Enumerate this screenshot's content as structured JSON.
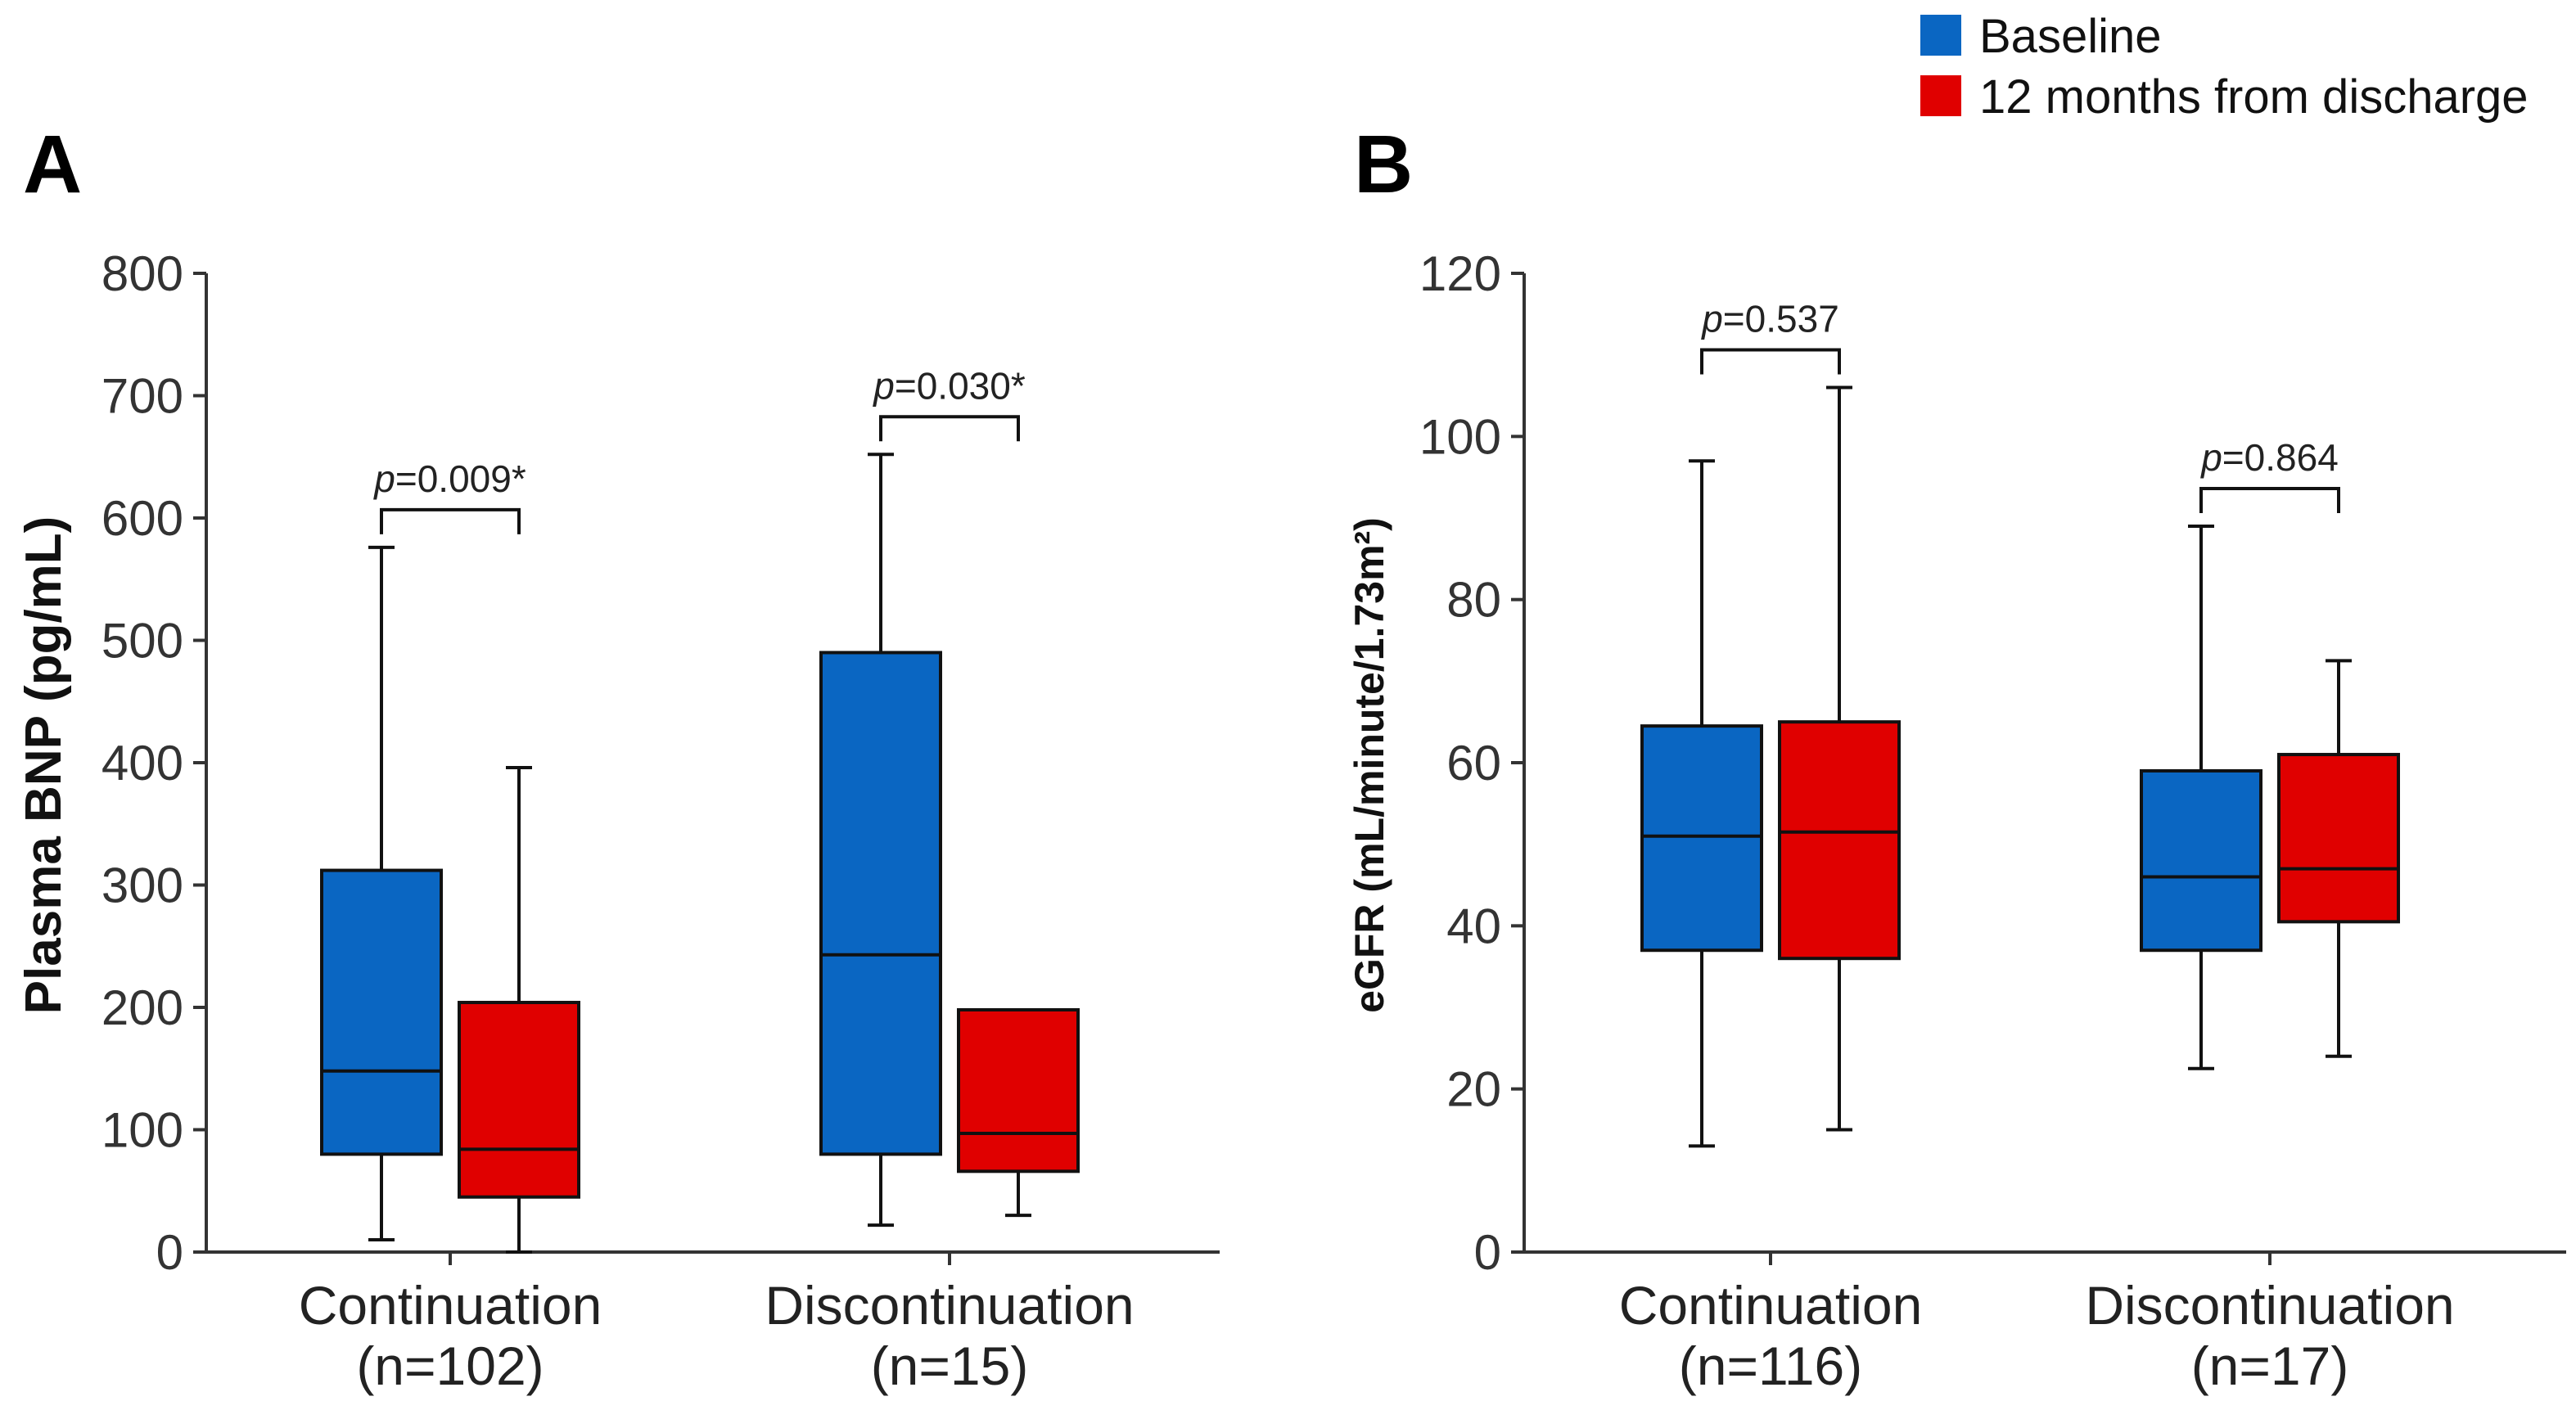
{
  "legend": [
    {
      "label": "Baseline",
      "color": "#0a66c2"
    },
    {
      "label": "12 months from discharge",
      "color": "#e00000"
    }
  ],
  "chart_data": [
    {
      "panel": "A",
      "type": "box",
      "ylabel": "Plasma BNP (pg/mL)",
      "ylim": [
        0,
        800
      ],
      "yticks": [
        0,
        100,
        200,
        300,
        400,
        500,
        600,
        700,
        800
      ],
      "groups": [
        {
          "name": "Continuation",
          "n": "(n=102)",
          "p": "=0.009*",
          "boxes": [
            {
              "series": "Baseline",
              "min": 10,
              "q1": 80,
              "median": 148,
              "q3": 312,
              "max": 576
            },
            {
              "series": "12 months from discharge",
              "min": 0,
              "q1": 45,
              "median": 84,
              "q3": 204,
              "max": 396
            }
          ]
        },
        {
          "name": "Discontinuation",
          "n": "(n=15)",
          "p": "=0.030*",
          "boxes": [
            {
              "series": "Baseline",
              "min": 22,
              "q1": 80,
              "median": 243,
              "q3": 490,
              "max": 652
            },
            {
              "series": "12 months from discharge",
              "min": 30,
              "q1": 66,
              "median": 97,
              "q3": 198,
              "max": 198
            }
          ]
        }
      ]
    },
    {
      "panel": "B",
      "type": "box",
      "ylabel": "eGFR (mL/minute/1.73m²)",
      "ylim": [
        0,
        120
      ],
      "yticks": [
        0,
        20,
        40,
        60,
        80,
        100,
        120
      ],
      "groups": [
        {
          "name": "Continuation",
          "n": "(n=116)",
          "p": "=0.537",
          "boxes": [
            {
              "series": "Baseline",
              "min": 13,
              "q1": 37,
              "median": 51,
              "q3": 64.5,
              "max": 97
            },
            {
              "series": "12 months from discharge",
              "min": 15,
              "q1": 36,
              "median": 51.5,
              "q3": 65,
              "max": 106
            }
          ]
        },
        {
          "name": "Discontinuation",
          "n": "(n=17)",
          "p": "=0.864",
          "boxes": [
            {
              "series": "Baseline",
              "min": 22.5,
              "q1": 37,
              "median": 46,
              "q3": 59,
              "max": 89
            },
            {
              "series": "12 months from discharge",
              "min": 24,
              "q1": 40.5,
              "median": 47,
              "q3": 61,
              "max": 72.5
            }
          ]
        }
      ]
    }
  ]
}
